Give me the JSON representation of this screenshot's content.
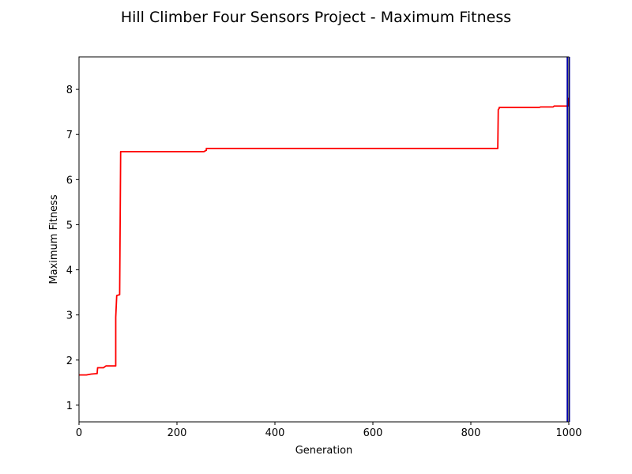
{
  "chart_data": {
    "type": "line",
    "title": "Hill Climber Four Sensors Project - Maximum Fitness",
    "xlabel": "Generation",
    "ylabel": "Maximum Fitness",
    "xlim": [
      0,
      1000
    ],
    "ylim": [
      0.63,
      8.72
    ],
    "xticks": [
      {
        "value": 0,
        "label": "0"
      },
      {
        "value": 200,
        "label": "200"
      },
      {
        "value": 400,
        "label": "400"
      },
      {
        "value": 600,
        "label": "600"
      },
      {
        "value": 800,
        "label": "800"
      },
      {
        "value": 1000,
        "label": "1000"
      }
    ],
    "yticks": [
      {
        "value": 1,
        "label": "1"
      },
      {
        "value": 2,
        "label": "2"
      },
      {
        "value": 3,
        "label": "3"
      },
      {
        "value": 4,
        "label": "4"
      },
      {
        "value": 5,
        "label": "5"
      },
      {
        "value": 6,
        "label": "6"
      },
      {
        "value": 7,
        "label": "7"
      },
      {
        "value": 8,
        "label": "8"
      }
    ],
    "grid": false,
    "series": [
      {
        "color": "#ff0000",
        "x": [
          0,
          15,
          25,
          37,
          38,
          50,
          55,
          60,
          75,
          75,
          77,
          77,
          83,
          85,
          85,
          255,
          260,
          260,
          855,
          856,
          858,
          858,
          940,
          942,
          968,
          970,
          998,
          999,
          1000
        ],
        "y": [
          1.67,
          1.67,
          1.69,
          1.7,
          1.83,
          1.83,
          1.87,
          1.87,
          1.87,
          2.95,
          3.43,
          3.43,
          3.45,
          6.58,
          6.62,
          6.62,
          6.65,
          6.69,
          6.69,
          7.55,
          7.58,
          7.6,
          7.6,
          7.61,
          7.61,
          7.63,
          7.63,
          7.8,
          7.8
        ]
      },
      {
        "color": "#0000aa",
        "x": [
          997,
          997
        ],
        "y": [
          0.63,
          8.72
        ]
      },
      {
        "color": "#0000aa",
        "x": [
          1001,
          1001
        ],
        "y": [
          0.63,
          8.72
        ]
      }
    ]
  }
}
